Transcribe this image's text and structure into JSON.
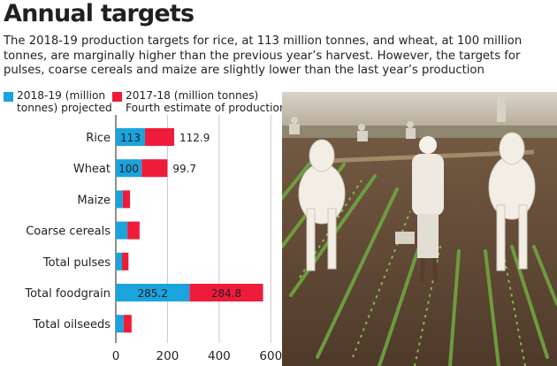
{
  "headline": "Annual targets",
  "subhead": "The 2018-19 production targets for rice, at 113 million tonnes, and wheat, at 100 million tonnes, are marginally higher than the previous year’s harvest. However, the targets for pulses, coarse cereals and maize are slightly lower than the last year’s production",
  "legend": [
    {
      "line1": "2018-19 (million",
      "line2": "tonnes) projected",
      "color": "#1aa3dd"
    },
    {
      "line1": "2017-18 (million tonnes)",
      "line2": "Fourth estimate of production",
      "color": "#ee1c3a"
    }
  ],
  "photo": {
    "icon": "farmer-ploughing-field-photo"
  },
  "chart_data": {
    "type": "bar",
    "orientation": "horizontal",
    "stacked": true,
    "categories": [
      "Rice",
      "Wheat",
      "Maize",
      "Coarse cereals",
      "Total pulses",
      "Total foodgrain",
      "Total oilseeds"
    ],
    "series": [
      {
        "name": "2018-19 (million tonnes) projected",
        "color": "#1aa3dd",
        "values": [
          113,
          100,
          27,
          45,
          24,
          285.2,
          30
        ]
      },
      {
        "name": "2017-18 (million tonnes) Fourth estimate of production",
        "color": "#ee1c3a",
        "values": [
          112.9,
          99.7,
          28,
          47,
          25,
          284.8,
          31
        ]
      }
    ],
    "data_labels": [
      {
        "category": "Rice",
        "series0": "113",
        "series1": "112.9"
      },
      {
        "category": "Wheat",
        "series0": "100",
        "series1": "99.7"
      },
      {
        "category": "Total foodgrain",
        "series0": "285.2",
        "series1": "284.8"
      }
    ],
    "xticks": [
      0,
      200,
      400,
      600
    ],
    "xlim": [
      0,
      640
    ],
    "grid": true,
    "legend_position": "top"
  }
}
